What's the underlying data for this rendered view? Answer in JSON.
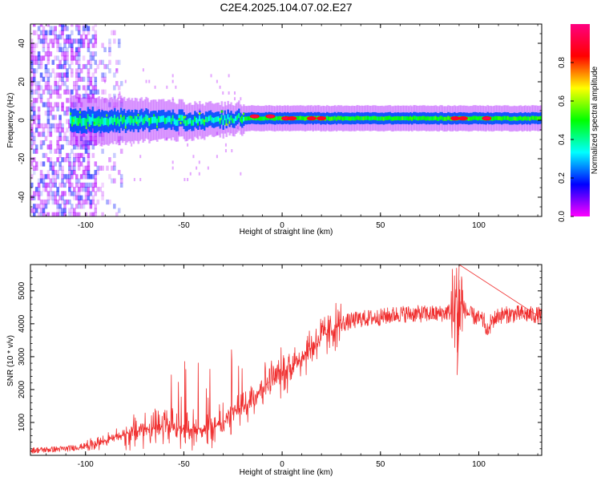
{
  "figure": {
    "title": "C2E4.2025.104.07.02.E27"
  },
  "chart_data": [
    {
      "type": "heatmap",
      "title": "",
      "xlabel": "Height of straight line (km)",
      "ylabel": "Frequency (Hz)",
      "xlim": [
        -128,
        132
      ],
      "ylim": [
        -50,
        50
      ],
      "x_ticks": [
        -100,
        -50,
        0,
        50,
        100
      ],
      "y_ticks": [
        -40,
        -20,
        0,
        20,
        40
      ],
      "colorbar": {
        "label": "Normalized spectral amplitude",
        "range": [
          0.0,
          1.0
        ],
        "ticks": [
          0.0,
          0.2,
          0.4,
          0.6,
          0.8
        ],
        "colormap": [
          "#ff00ff",
          "#0000ff",
          "#00ffff",
          "#00ff00",
          "#ffff00",
          "#ff0000",
          "#ff0080"
        ]
      },
      "ridge": {
        "description_free": true,
        "segments": [
          {
            "x_from": -128,
            "x_to": -95,
            "center_hz": 0,
            "halfwidth_hz": 50,
            "peak_amplitude": 0.25
          },
          {
            "x_from": -105,
            "x_to": -20,
            "center_hz": 0,
            "halfwidth_hz": 6,
            "peak_amplitude": 0.45
          },
          {
            "x_from": -20,
            "x_to": 132,
            "center_hz": 1,
            "halfwidth_hz": 3,
            "peak_amplitude": 0.55
          }
        ],
        "hotspots": [
          {
            "x": -14,
            "y": 2,
            "amplitude": 0.95
          },
          {
            "x": -6,
            "y": 2,
            "amplitude": 0.95
          },
          {
            "x": 2,
            "y": 1,
            "amplitude": 0.95
          },
          {
            "x": 5,
            "y": 1,
            "amplitude": 0.9
          },
          {
            "x": 15,
            "y": 1,
            "amplitude": 0.9
          },
          {
            "x": 20,
            "y": 1,
            "amplitude": 0.9
          },
          {
            "x": 88,
            "y": 1,
            "amplitude": 0.9
          },
          {
            "x": 92,
            "y": 1,
            "amplitude": 0.9
          },
          {
            "x": 104,
            "y": 1,
            "amplitude": 0.95
          }
        ]
      }
    },
    {
      "type": "line",
      "title": "",
      "xlabel": "Height of straight line (km)",
      "ylabel": "SNR (10 * v/v)",
      "xlim": [
        -128,
        132
      ],
      "ylim": [
        0,
        5800
      ],
      "x_ticks": [
        -100,
        -50,
        0,
        50,
        100
      ],
      "y_ticks": [
        1000,
        2000,
        3000,
        4000,
        5000
      ],
      "color": "#f03030",
      "series": [
        {
          "x": [
            -128,
            -110,
            -100,
            -90,
            -80,
            -70,
            -60,
            -50,
            -40,
            -30,
            -25,
            -20,
            -10,
            0,
            10,
            20,
            30,
            40,
            50,
            60,
            70,
            80,
            88,
            90,
            95,
            100,
            105,
            110,
            120,
            132
          ],
          "y": [
            150,
            200,
            280,
            450,
            650,
            800,
            800,
            800,
            800,
            950,
            1300,
            1400,
            2100,
            2500,
            3000,
            3600,
            4000,
            4150,
            4200,
            4300,
            4300,
            4300,
            4400,
            4600,
            4300,
            4150,
            4000,
            4250,
            4300,
            4250
          ]
        }
      ],
      "annotations": [
        {
          "x": 90,
          "y": 5800,
          "type": "spike_max"
        },
        {
          "x": 89,
          "y": 2450,
          "type": "spike_min"
        }
      ]
    }
  ]
}
